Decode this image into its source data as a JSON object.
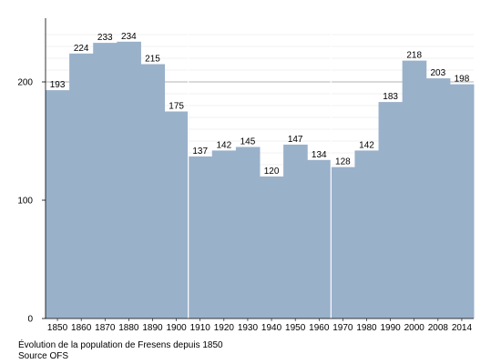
{
  "chart_data": {
    "type": "bar",
    "categories": [
      "1850",
      "1860",
      "1870",
      "1880",
      "1890",
      "1900",
      "1910",
      "1920",
      "1930",
      "1940",
      "1950",
      "1960",
      "1970",
      "1980",
      "1990",
      "2000",
      "2008",
      "2014"
    ],
    "values": [
      193,
      224,
      233,
      234,
      215,
      175,
      137,
      142,
      145,
      120,
      147,
      134,
      128,
      142,
      183,
      218,
      203,
      198
    ],
    "value_labels": [
      "193",
      "224",
      "233",
      "234",
      "215",
      "175",
      "137",
      "142",
      "145",
      "120",
      "147",
      "134",
      "128",
      "142",
      "183",
      "218",
      "203",
      "198"
    ],
    "ylim": [
      0,
      250
    ],
    "yticks": [
      0,
      100,
      200
    ],
    "ytick_labels": [
      "0",
      "100",
      "200"
    ],
    "grid": true,
    "bar_color": "#9ab1ca",
    "caption": "Évolution de la population de Fresens depuis 1850",
    "source": "Source OFS"
  }
}
